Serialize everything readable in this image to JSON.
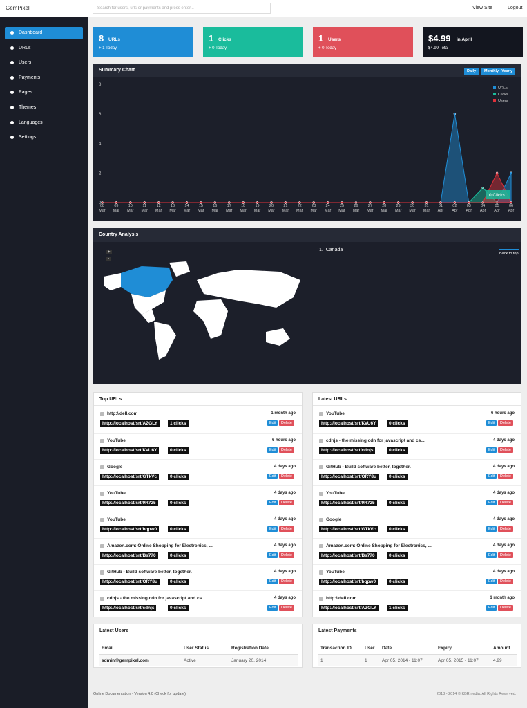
{
  "header": {
    "brand": "GemPixel",
    "search_placeholder": "Search for users, urls or payments and press enter...",
    "links": [
      "View Site",
      "Logout"
    ]
  },
  "sidebar": [
    "Dashboard",
    "URLs",
    "Users",
    "Payments",
    "Pages",
    "Themes",
    "Languages",
    "Settings"
  ],
  "stats": [
    {
      "value": "8",
      "label": "URLs",
      "sub": "+ 1 Today"
    },
    {
      "value": "1",
      "label": "Clicks",
      "sub": "+ 0 Today"
    },
    {
      "value": "1",
      "label": "Users",
      "sub": "+ 0 Today"
    },
    {
      "value": "$4.99",
      "label": "in April",
      "sub": "$4.99 Total"
    }
  ],
  "chart_data": {
    "type": "area",
    "title": "Summary Chart",
    "buttons": [
      "Daily",
      "Monthly",
      "Yearly"
    ],
    "categories": [
      "08 Mar",
      "09 Mar",
      "10 Mar",
      "11 Mar",
      "12 Mar",
      "13 Mar",
      "14 Mar",
      "15 Mar",
      "16 Mar",
      "17 Mar",
      "18 Mar",
      "19 Mar",
      "20 Mar",
      "21 Mar",
      "22 Mar",
      "23 Mar",
      "24 Mar",
      "25 Mar",
      "26 Mar",
      "27 Mar",
      "28 Mar",
      "29 Mar",
      "30 Mar",
      "31 Mar",
      "01 Apr",
      "02 Apr",
      "03 Apr",
      "04 Apr",
      "05 Apr",
      "06 Apr"
    ],
    "series": [
      {
        "name": "URLs",
        "color": "#1f8dd6",
        "values": [
          0,
          0,
          0,
          0,
          0,
          0,
          0,
          0,
          0,
          0,
          0,
          0,
          0,
          0,
          0,
          0,
          0,
          0,
          0,
          0,
          0,
          0,
          0,
          0,
          0,
          6,
          0,
          0,
          0,
          2
        ]
      },
      {
        "name": "Clicks",
        "color": "#1abc9c",
        "values": [
          0,
          0,
          0,
          0,
          0,
          0,
          0,
          0,
          0,
          0,
          0,
          0,
          0,
          0,
          0,
          0,
          0,
          0,
          0,
          0,
          0,
          0,
          0,
          0,
          0,
          0,
          0,
          1,
          0,
          0
        ]
      },
      {
        "name": "Users",
        "color": "#e0303a",
        "values": [
          0,
          0,
          0,
          0,
          0,
          0,
          0,
          0,
          0,
          0,
          0,
          0,
          0,
          0,
          0,
          0,
          0,
          0,
          0,
          0,
          0,
          0,
          0,
          0,
          0,
          0,
          0,
          0,
          2,
          0
        ]
      }
    ],
    "ylim": [
      0,
      8
    ],
    "yticks": [
      0,
      2,
      4,
      6,
      8
    ],
    "legend": "top-right",
    "annotation": "0 Clicks"
  },
  "country": {
    "title": "Country Analysis",
    "list": [
      "Canada"
    ],
    "zoom": [
      "+",
      "-"
    ],
    "back_to_top": "Back to top"
  },
  "actions": [
    "Edit",
    "Delete"
  ],
  "top_urls": {
    "title": "Top URLs",
    "rows": [
      [
        "http://dell.com",
        "http://localhost/srt/AZGLY",
        "1 clicks",
        "1 month ago"
      ],
      [
        "YouTube",
        "http://localhost/srt/KvU6Y",
        "0 clicks",
        "6 hours ago"
      ],
      [
        "Google",
        "http://localhost/srt/GTkVc",
        "0 clicks",
        "4 days ago"
      ],
      [
        "YouTube",
        "http://localhost/srt/9R725",
        "0 clicks",
        "4 days ago"
      ],
      [
        "YouTube",
        "http://localhost/srt/bqpw0",
        "0 clicks",
        "4 days ago"
      ],
      [
        "Amazon.com: Online Shopping for Electronics, ...",
        "http://localhost/srt/Bs770",
        "0 clicks",
        "4 days ago"
      ],
      [
        "GitHub - Build software better, together.",
        "http://localhost/srt/ORY8u",
        "0 clicks",
        "4 days ago"
      ],
      [
        "cdnjs - the missing cdn for javascript and cs...",
        "http://localhost/srt/cdnjs",
        "0 clicks",
        "4 days ago"
      ]
    ]
  },
  "latest_urls": {
    "title": "Latest URLs",
    "rows": [
      [
        "YouTube",
        "http://localhost/srt/KvU6Y",
        "0 clicks",
        "6 hours ago"
      ],
      [
        "cdnjs - the missing cdn for javascript and cs...",
        "http://localhost/srt/cdnjs",
        "0 clicks",
        "4 days ago"
      ],
      [
        "GitHub - Build software better, together.",
        "http://localhost/srt/ORY8u",
        "0 clicks",
        "4 days ago"
      ],
      [
        "YouTube",
        "http://localhost/srt/9R725",
        "0 clicks",
        "4 days ago"
      ],
      [
        "Google",
        "http://localhost/srt/GTkVc",
        "0 clicks",
        "4 days ago"
      ],
      [
        "Amazon.com: Online Shopping for Electronics, ...",
        "http://localhost/srt/Bs770",
        "0 clicks",
        "4 days ago"
      ],
      [
        "YouTube",
        "http://localhost/srt/bqpw0",
        "0 clicks",
        "4 days ago"
      ],
      [
        "http://dell.com",
        "http://localhost/srt/AZGLY",
        "1 clicks",
        "1 month ago"
      ]
    ]
  },
  "latest_users": {
    "title": "Latest Users",
    "headers": [
      "Email",
      "User Status",
      "Registration Date"
    ],
    "rows": [
      [
        "admin@gempixel.com",
        "Active",
        "January 20, 2014"
      ]
    ]
  },
  "latest_payments": {
    "title": "Latest Payments",
    "headers": [
      "Transaction ID",
      "User",
      "Date",
      "Expiry",
      "Amount"
    ],
    "rows": [
      [
        "1",
        "1",
        "Apr 05, 2014 - 11:07",
        "Apr 05, 2015 - 11:07",
        "4.99"
      ]
    ]
  },
  "footer": {
    "left": "Online Documentation - Version 4.0 (Check for update)",
    "right": "2013 - 2014 © KBRmedia. All Rights Reserved."
  }
}
